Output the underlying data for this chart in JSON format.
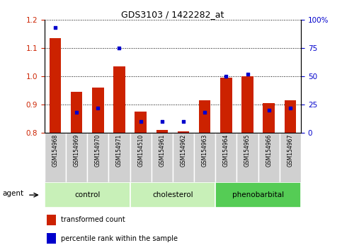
{
  "title": "GDS3103 / 1422282_at",
  "samples": [
    "GSM154968",
    "GSM154969",
    "GSM154970",
    "GSM154971",
    "GSM154510",
    "GSM154961",
    "GSM154962",
    "GSM154963",
    "GSM154964",
    "GSM154965",
    "GSM154966",
    "GSM154967"
  ],
  "red_values": [
    1.135,
    0.945,
    0.96,
    1.035,
    0.875,
    0.81,
    0.805,
    0.915,
    0.995,
    1.0,
    0.905,
    0.915
  ],
  "blue_values": [
    93,
    18,
    22,
    75,
    10,
    10,
    10,
    18,
    50,
    52,
    20,
    22
  ],
  "ylim_left": [
    0.8,
    1.2
  ],
  "ylim_right": [
    0,
    100
  ],
  "yticks_left": [
    0.8,
    0.9,
    1.0,
    1.1,
    1.2
  ],
  "yticks_right": [
    0,
    25,
    50,
    75,
    100
  ],
  "yticklabels_right": [
    "0",
    "25",
    "50",
    "75",
    "100%"
  ],
  "bar_color": "#cc2200",
  "marker_color": "#0000cc",
  "bar_width": 0.55,
  "group_info": [
    {
      "name": "control",
      "start": 0,
      "end": 3,
      "color": "#c8f0b8"
    },
    {
      "name": "cholesterol",
      "start": 4,
      "end": 7,
      "color": "#c8f0b8"
    },
    {
      "name": "phenobarbital",
      "start": 8,
      "end": 11,
      "color": "#55cc55"
    }
  ],
  "legend_items": [
    {
      "color": "#cc2200",
      "label": "transformed count"
    },
    {
      "color": "#0000cc",
      "label": "percentile rank within the sample"
    }
  ],
  "tick_color_left": "#cc2200",
  "tick_color_right": "#0000cc",
  "label_bg": "#d0d0d0"
}
